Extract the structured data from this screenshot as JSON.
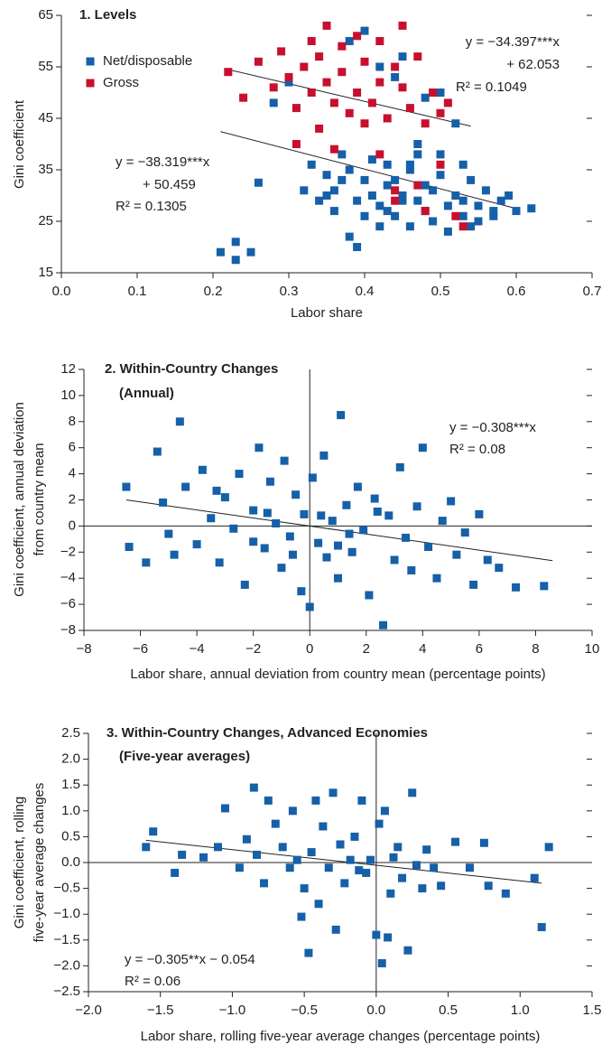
{
  "chart_data": [
    {
      "type": "scatter",
      "title": "1. Levels",
      "xlabel": "Labor share",
      "ylabel": [
        "Gini coefficient"
      ],
      "xlim": [
        0,
        0.7
      ],
      "ylim": [
        15,
        65
      ],
      "xticks": [
        {
          "value": 0,
          "label": "0.0"
        },
        0.1,
        0.2,
        0.3,
        0.4,
        0.5,
        0.6,
        0.7
      ],
      "yticks": [
        15,
        25,
        35,
        45,
        55,
        65
      ],
      "zero_lines": false,
      "legend": "upper left",
      "series": [
        {
          "name": "Net/disposable",
          "color": "#1560a8",
          "x": [
            0.21,
            0.23,
            0.23,
            0.25,
            0.26,
            0.28,
            0.3,
            0.32,
            0.33,
            0.34,
            0.35,
            0.36,
            0.37,
            0.38,
            0.38,
            0.39,
            0.4,
            0.4,
            0.41,
            0.42,
            0.42,
            0.43,
            0.43,
            0.44,
            0.44,
            0.45,
            0.45,
            0.46,
            0.46,
            0.47,
            0.47,
            0.48,
            0.48,
            0.49,
            0.49,
            0.5,
            0.5,
            0.51,
            0.51,
            0.52,
            0.52,
            0.53,
            0.53,
            0.54,
            0.54,
            0.55,
            0.56,
            0.57,
            0.58,
            0.59,
            0.6,
            0.62,
            0.36,
            0.38,
            0.41,
            0.44,
            0.47,
            0.5,
            0.45,
            0.43,
            0.39,
            0.37,
            0.4,
            0.42,
            0.46,
            0.48,
            0.53,
            0.55,
            0.57,
            0.35
          ],
          "values": [
            19,
            21,
            17.5,
            19,
            32.5,
            48,
            52,
            31,
            36,
            29,
            34,
            27,
            38,
            22,
            60,
            20,
            62,
            33,
            30,
            28,
            55,
            36,
            32,
            53,
            26,
            57,
            30,
            35,
            24,
            29,
            40,
            49,
            27,
            31,
            25,
            50,
            34,
            28,
            23,
            30,
            44,
            26,
            36,
            24,
            33,
            28,
            31,
            26,
            29,
            30,
            27,
            27.5,
            31,
            35,
            37,
            33,
            38,
            38,
            29,
            27,
            29,
            33,
            26,
            24,
            36,
            32,
            29,
            25,
            27,
            30
          ]
        },
        {
          "name": "Gross",
          "color": "#c8102e",
          "x": [
            0.22,
            0.24,
            0.26,
            0.28,
            0.29,
            0.3,
            0.31,
            0.32,
            0.33,
            0.33,
            0.34,
            0.35,
            0.35,
            0.36,
            0.37,
            0.37,
            0.38,
            0.39,
            0.39,
            0.4,
            0.41,
            0.42,
            0.42,
            0.43,
            0.44,
            0.45,
            0.45,
            0.46,
            0.47,
            0.48,
            0.49,
            0.5,
            0.51,
            0.31,
            0.34,
            0.36,
            0.42,
            0.44,
            0.47,
            0.5,
            0.52,
            0.53,
            0.48,
            0.44,
            0.4
          ],
          "values": [
            54,
            49,
            56,
            51,
            58,
            53,
            47,
            55,
            60,
            50,
            57,
            52,
            63,
            48,
            59,
            54,
            46,
            61,
            50,
            56,
            48,
            52,
            60,
            45,
            55,
            51,
            63,
            47,
            57,
            44,
            50,
            46,
            48,
            40,
            43,
            39,
            38,
            29,
            32,
            36,
            26,
            24,
            27,
            31,
            44
          ]
        }
      ],
      "trend_lines": [
        {
          "x": [
            0.22,
            0.54
          ],
          "values": [
            54.48,
            43.48
          ]
        },
        {
          "x": [
            0.21,
            0.6
          ],
          "values": [
            42.41,
            27.47
          ]
        }
      ],
      "annotations": [
        [
          "y = −34.397***x",
          "+ 62.053",
          "R² = 0.1049"
        ],
        [
          "y = −38.319***x",
          "+ 50.459",
          "R² = 0.1305"
        ]
      ]
    },
    {
      "type": "scatter",
      "title": "2. Within-Country Changes",
      "subtitle": "(Annual)",
      "xlabel": "Labor share, annual deviation from country mean (percentage points)",
      "ylabel": [
        "Gini coefficient, annual deviation",
        "from country mean"
      ],
      "xlim": [
        -8,
        10
      ],
      "ylim": [
        -8,
        12
      ],
      "xticks": [
        {
          "value": -8,
          "label": "−8"
        },
        {
          "value": -6,
          "label": "−6"
        },
        {
          "value": -4,
          "label": "−4"
        },
        {
          "value": -2,
          "label": "−2"
        },
        0,
        2,
        4,
        6,
        8,
        10
      ],
      "yticks": [
        {
          "value": -8,
          "label": "−8"
        },
        {
          "value": -6,
          "label": "−6"
        },
        {
          "value": -4,
          "label": "−4"
        },
        {
          "value": -2,
          "label": "−2"
        },
        0,
        2,
        4,
        6,
        8,
        10,
        12
      ],
      "zero_lines": true,
      "series": [
        {
          "color": "#1560a8",
          "x": [
            -6.5,
            -6.4,
            -5.8,
            -5.4,
            -5.2,
            -5.0,
            -4.6,
            -4.4,
            -4.0,
            -3.8,
            -3.5,
            -3.2,
            -3.0,
            -2.7,
            -2.5,
            -2.3,
            -2.0,
            -1.8,
            -1.6,
            -1.4,
            -1.2,
            -1.0,
            -0.9,
            -0.7,
            -0.5,
            -0.3,
            -0.2,
            0.0,
            0.1,
            0.3,
            0.5,
            0.6,
            0.8,
            1.0,
            1.1,
            1.3,
            1.5,
            1.7,
            1.9,
            2.1,
            2.3,
            2.6,
            2.8,
            3.0,
            3.2,
            3.4,
            3.6,
            3.8,
            4.0,
            4.2,
            4.5,
            4.7,
            5.0,
            5.2,
            5.5,
            5.8,
            6.0,
            6.3,
            6.7,
            7.3,
            8.3,
            -4.8,
            -3.3,
            -1.5,
            -0.6,
            0.4,
            1.4,
            2.4,
            -2.0,
            1.0
          ],
          "values": [
            3.0,
            -1.6,
            -2.8,
            5.7,
            1.8,
            -0.6,
            8.0,
            3.0,
            -1.4,
            4.3,
            0.6,
            -2.8,
            2.2,
            -0.2,
            4.0,
            -4.5,
            1.2,
            6.0,
            -1.7,
            3.4,
            0.2,
            -3.2,
            5.0,
            -0.8,
            2.4,
            -5.0,
            0.9,
            -6.2,
            3.7,
            -1.3,
            5.4,
            -2.4,
            0.4,
            -4.0,
            8.5,
            1.6,
            -2.0,
            3.0,
            -0.3,
            -5.3,
            2.1,
            -7.6,
            0.8,
            -2.6,
            4.5,
            -0.9,
            -3.4,
            1.5,
            6.0,
            -1.6,
            -4.0,
            0.4,
            1.9,
            -2.2,
            -0.5,
            -4.5,
            0.9,
            -2.6,
            -3.2,
            -4.7,
            -4.6,
            -2.2,
            2.7,
            1.0,
            -2.2,
            0.8,
            -0.6,
            1.1,
            -1.2,
            -1.5
          ]
        }
      ],
      "trend_lines": [
        {
          "x": [
            -6.5,
            8.6
          ],
          "values": [
            2.0,
            -2.65
          ]
        }
      ],
      "annotations": [
        [
          "y = −0.308***x",
          "R² = 0.08"
        ]
      ]
    },
    {
      "type": "scatter",
      "title": "3. Within-Country Changes, Advanced Economies",
      "subtitle": "(Five-year averages)",
      "xlabel": "Labor share, rolling five-year average changes (percentage points)",
      "ylabel": [
        "Gini coefficient, rolling",
        "five-year average changes"
      ],
      "xlim": [
        -2,
        1.5
      ],
      "ylim": [
        -2.5,
        2.5
      ],
      "xticks": [
        {
          "value": -2,
          "label": "−2.0"
        },
        {
          "value": -1.5,
          "label": "−1.5"
        },
        {
          "value": -1,
          "label": "−1.0"
        },
        {
          "value": -0.5,
          "label": "−0.5"
        },
        {
          "value": 0,
          "label": "0.0"
        },
        0.5,
        {
          "value": 1,
          "label": "1.0"
        },
        1.5
      ],
      "yticks": [
        {
          "value": -2.5,
          "label": "−2.5"
        },
        {
          "value": -2,
          "label": "−2.0"
        },
        {
          "value": -1.5,
          "label": "−1.5"
        },
        {
          "value": -1,
          "label": "−1.0"
        },
        {
          "value": -0.5,
          "label": "−0.5"
        },
        {
          "value": 0,
          "label": "0.0"
        },
        0.5,
        {
          "value": 1,
          "label": "1.0"
        },
        1.5,
        {
          "value": 2,
          "label": "2.0"
        },
        2.5
      ],
      "zero_lines": true,
      "series": [
        {
          "color": "#1560a8",
          "x": [
            -1.6,
            -1.55,
            -1.4,
            -1.35,
            -1.2,
            -1.1,
            -1.05,
            -0.95,
            -0.9,
            -0.85,
            -0.83,
            -0.78,
            -0.75,
            -0.7,
            -0.65,
            -0.6,
            -0.58,
            -0.55,
            -0.52,
            -0.5,
            -0.47,
            -0.45,
            -0.42,
            -0.4,
            -0.37,
            -0.33,
            -0.3,
            -0.28,
            -0.25,
            -0.22,
            -0.18,
            -0.15,
            -0.12,
            -0.1,
            -0.07,
            -0.04,
            0.0,
            0.02,
            0.04,
            0.06,
            0.08,
            0.1,
            0.12,
            0.15,
            0.18,
            0.22,
            0.25,
            0.28,
            0.32,
            0.35,
            0.4,
            0.45,
            0.55,
            0.65,
            0.75,
            0.78,
            0.9,
            1.1,
            1.15,
            1.2
          ],
          "values": [
            0.3,
            0.6,
            -0.2,
            0.15,
            0.1,
            0.3,
            1.05,
            -0.1,
            0.45,
            1.45,
            0.15,
            -0.4,
            1.2,
            0.75,
            0.3,
            -0.1,
            1.0,
            0.05,
            -1.05,
            -0.5,
            -1.75,
            0.2,
            1.2,
            -0.8,
            0.7,
            -0.1,
            1.35,
            -1.3,
            0.35,
            -0.4,
            0.05,
            0.5,
            -0.15,
            1.2,
            -0.2,
            0.05,
            -1.4,
            0.75,
            -1.95,
            1.0,
            -1.45,
            -0.6,
            0.1,
            0.3,
            -0.3,
            -1.7,
            1.35,
            -0.05,
            -0.5,
            0.25,
            -0.1,
            -0.45,
            0.4,
            -0.1,
            0.38,
            -0.45,
            -0.6,
            -0.3,
            -1.25,
            0.3
          ]
        }
      ],
      "trend_lines": [
        {
          "x": [
            -1.6,
            1.15
          ],
          "values": [
            0.43,
            -0.4
          ]
        }
      ],
      "annotations": [
        [
          "y = −0.305**x − 0.054",
          "R² = 0.06"
        ]
      ]
    }
  ]
}
